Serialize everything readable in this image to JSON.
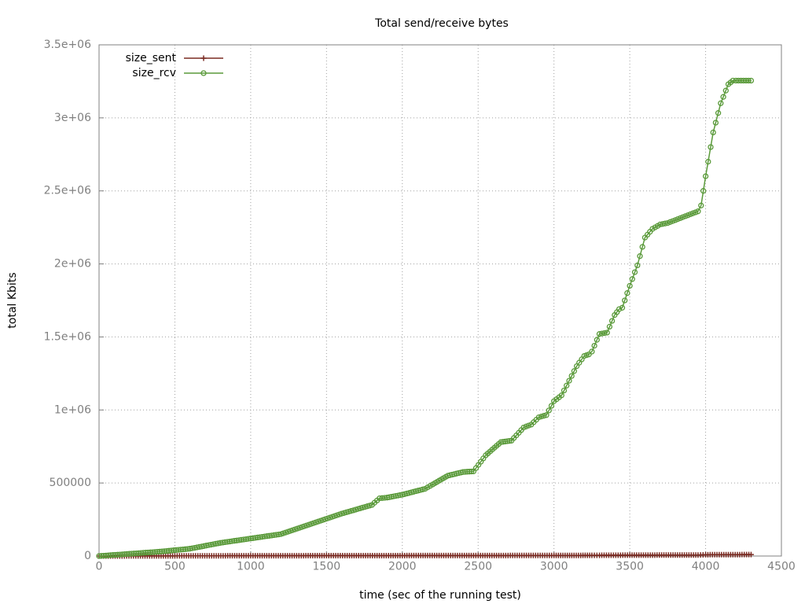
{
  "chart_data": {
    "type": "line",
    "title": "Total send/receive bytes",
    "xlabel": "time (sec of the running test)",
    "ylabel": "total Kbits",
    "xlim": [
      0,
      4500
    ],
    "ylim": [
      0,
      3500000
    ],
    "x_ticks": [
      {
        "value": 0,
        "label": "0"
      },
      {
        "value": 500,
        "label": "500"
      },
      {
        "value": 1000,
        "label": "1000"
      },
      {
        "value": 1500,
        "label": "1500"
      },
      {
        "value": 2000,
        "label": "2000"
      },
      {
        "value": 2500,
        "label": "2500"
      },
      {
        "value": 3000,
        "label": "3000"
      },
      {
        "value": 3500,
        "label": "3500"
      },
      {
        "value": 4000,
        "label": "4000"
      },
      {
        "value": 4500,
        "label": "4500"
      }
    ],
    "y_ticks": [
      {
        "value": 0,
        "label": "0"
      },
      {
        "value": 500000,
        "label": "500000"
      },
      {
        "value": 1000000,
        "label": "1e+06"
      },
      {
        "value": 1500000,
        "label": "1.5e+06"
      },
      {
        "value": 2000000,
        "label": "2e+06"
      },
      {
        "value": 2500000,
        "label": "2.5e+06"
      },
      {
        "value": 3000000,
        "label": "3e+06"
      },
      {
        "value": 3500000,
        "label": "3.5e+06"
      }
    ],
    "grid": true,
    "legend_position": "top-left",
    "series": [
      {
        "name": "size_sent",
        "color": "#7a2b22",
        "marker": "plus",
        "x": [
          0,
          500,
          1000,
          1500,
          2000,
          2500,
          3000,
          3250,
          3300,
          3500,
          3950,
          4000,
          4300
        ],
        "y": [
          0,
          1000,
          2000,
          2500,
          3000,
          3500,
          4000,
          4500,
          5000,
          6000,
          7000,
          9000,
          10000
        ]
      },
      {
        "name": "size_rcv",
        "color": "#5a9a3a",
        "marker": "circle",
        "x": [
          0,
          200,
          400,
          600,
          800,
          1000,
          1200,
          1400,
          1600,
          1800,
          1850,
          1900,
          2000,
          2150,
          2200,
          2300,
          2400,
          2470,
          2550,
          2650,
          2720,
          2800,
          2850,
          2900,
          2950,
          3000,
          3050,
          3100,
          3150,
          3200,
          3230,
          3250,
          3300,
          3350,
          3400,
          3430,
          3450,
          3500,
          3550,
          3600,
          3650,
          3700,
          3750,
          3800,
          3850,
          3900,
          3950,
          3970,
          4000,
          4050,
          4100,
          4150,
          4180,
          4200,
          4250,
          4300
        ],
        "y": [
          0,
          15000,
          30000,
          50000,
          90000,
          120000,
          150000,
          220000,
          290000,
          350000,
          395000,
          400000,
          420000,
          460000,
          490000,
          550000,
          575000,
          580000,
          690000,
          780000,
          790000,
          880000,
          900000,
          950000,
          965000,
          1060000,
          1100000,
          1200000,
          1300000,
          1370000,
          1380000,
          1400000,
          1520000,
          1530000,
          1650000,
          1690000,
          1700000,
          1850000,
          1990000,
          2180000,
          2240000,
          2270000,
          2280000,
          2300000,
          2320000,
          2340000,
          2360000,
          2400000,
          2600000,
          2900000,
          3100000,
          3230000,
          3255000,
          3255000,
          3255000,
          3255000
        ]
      }
    ]
  }
}
